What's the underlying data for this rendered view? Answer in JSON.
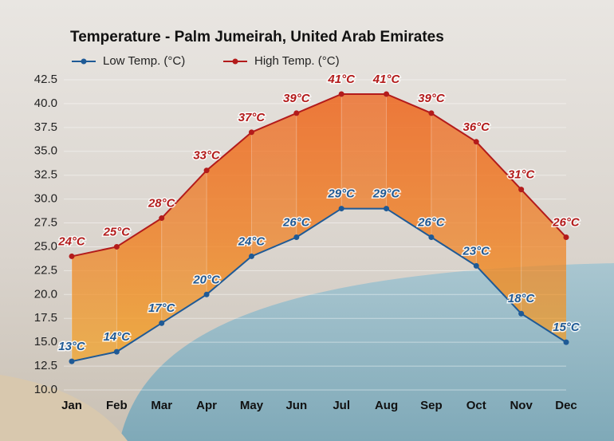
{
  "chart_data": {
    "type": "line",
    "title": "Temperature - Palm Jumeirah, United Arab Emirates",
    "categories": [
      "Jan",
      "Feb",
      "Mar",
      "Apr",
      "May",
      "Jun",
      "Jul",
      "Aug",
      "Sep",
      "Oct",
      "Nov",
      "Dec"
    ],
    "series": [
      {
        "name": "Low Temp. (°C)",
        "color": "#1f5a96",
        "values": [
          13,
          14,
          17,
          20,
          24,
          26,
          29,
          29,
          26,
          23,
          18,
          15
        ],
        "value_labels": [
          "13°C",
          "14°C",
          "17°C",
          "20°C",
          "24°C",
          "26°C",
          "29°C",
          "29°C",
          "26°C",
          "23°C",
          "18°C",
          "15°C"
        ]
      },
      {
        "name": "High Temp. (°C)",
        "color": "#b31b1b",
        "values": [
          24,
          25,
          28,
          33,
          37,
          39,
          41,
          41,
          39,
          36,
          31,
          26
        ],
        "value_labels": [
          "24°C",
          "25°C",
          "28°C",
          "33°C",
          "37°C",
          "39°C",
          "41°C",
          "41°C",
          "39°C",
          "36°C",
          "31°C",
          "26°C"
        ]
      }
    ],
    "ylim": [
      10,
      42.5
    ],
    "yticks": [
      {
        "value": 10,
        "label": "10.0"
      },
      12.5,
      {
        "value": 15,
        "label": "15.0"
      },
      17.5,
      {
        "value": 20,
        "label": "20.0"
      },
      22.5,
      {
        "value": 25,
        "label": "25.0"
      },
      27.5,
      {
        "value": 30,
        "label": "30.0"
      },
      32.5,
      {
        "value": 35,
        "label": "35.0"
      },
      37.5,
      {
        "value": 40,
        "label": "40.0"
      },
      42.5
    ],
    "grid": true
  }
}
